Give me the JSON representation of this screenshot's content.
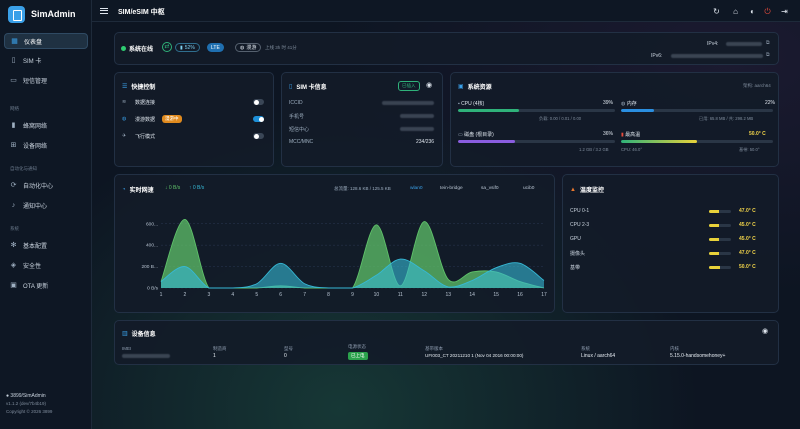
{
  "app": {
    "name": "SimAdmin",
    "page_title": "SIM/eSIM 中枢"
  },
  "sidebar": {
    "items": [
      {
        "label": "仪表盘",
        "icon": "dashboard-icon",
        "active": true
      },
      {
        "label": "SIM 卡",
        "icon": "sim-icon"
      },
      {
        "label": "短信管理",
        "icon": "message-icon"
      }
    ],
    "section_network": "网络",
    "network_items": [
      {
        "label": "蜂窝网络",
        "icon": "signal-bars-icon"
      },
      {
        "label": "设备网络",
        "icon": "network-icon"
      }
    ],
    "section_automation": "自动化与通知",
    "automation_items": [
      {
        "label": "自动化中心",
        "icon": "automation-icon"
      },
      {
        "label": "通知中心",
        "icon": "bell-icon"
      }
    ],
    "section_system": "系统",
    "system_items": [
      {
        "label": "基本配置",
        "icon": "gear-icon"
      },
      {
        "label": "安全性",
        "icon": "shield-icon"
      },
      {
        "label": "OTA 更新",
        "icon": "update-icon"
      }
    ],
    "footer": {
      "repo": "3899/SimAdmin",
      "version": "v1.1.2 (dev/7b4b19)",
      "copyright": "Copyright © 2026 3899"
    }
  },
  "status": {
    "online_label": "系统在线",
    "signal": "52%",
    "network": "LTE",
    "roaming": "漫游",
    "uptime": "上线 3h 时 41分",
    "ipv4_label": "IPv4:",
    "ipv6_label": "IPv6:"
  },
  "quick_controls": {
    "title": "快捷控制",
    "items": [
      {
        "label": "数据连接",
        "icon": "wifi-icon",
        "on": false
      },
      {
        "label": "漫游数据",
        "icon": "globe-icon",
        "badge": "漫游中",
        "on": true
      },
      {
        "label": "飞行模式",
        "icon": "airplane-icon",
        "on": false
      }
    ]
  },
  "sim_info": {
    "title": "SIM 卡信息",
    "status_badge": "已插入",
    "fields": [
      {
        "label": "ICCID",
        "value": ""
      },
      {
        "label": "手机号",
        "value": ""
      },
      {
        "label": "短信中心",
        "value": ""
      },
      {
        "label": "MCC/MNC",
        "value": "234/236"
      }
    ]
  },
  "resources": {
    "title": "系统资源",
    "arch": "架构: aarch64",
    "cpu": {
      "label": "CPU (4核)",
      "percent": "39%",
      "fill": 0.39,
      "sub": "负载: 0.00 / 0.01 / 0.00",
      "color": "#2fb27a"
    },
    "memory": {
      "label": "内存",
      "percent": "22%",
      "fill": 0.22,
      "sub": "已用: 65.8 MB / 共: 298.2 MB",
      "color": "#2a8ee0"
    },
    "storage": {
      "label": "磁盘 (根目录)",
      "percent": "36%",
      "fill": 0.36,
      "sub": "1.2 GB / 3.2 GB",
      "color": "#8a5de0"
    },
    "temp": {
      "label": "最高温",
      "value": "50.0° C",
      "sub_left": "CPU: 46.0°",
      "sub_right": "基带: 50.0°",
      "fill": 0.5
    }
  },
  "traffic": {
    "title": "实时网速",
    "down": "0 B/s",
    "up": "0 B/s",
    "total": "总流量: 128.6 KB / 125.5 KB",
    "tabs": [
      "wlan0",
      "tein-bridge",
      "sa_vsif0",
      "ucib0"
    ],
    "active_tab": 0
  },
  "temperature": {
    "title": "温度监控",
    "rows": [
      {
        "label": "CPU 0-1",
        "value": "47.0° C",
        "fill": 0.47
      },
      {
        "label": "CPU 2-3",
        "value": "45.0° C",
        "fill": 0.45
      },
      {
        "label": "GPU",
        "value": "45.0° C",
        "fill": 0.45
      },
      {
        "label": "摄像头",
        "value": "47.0° C",
        "fill": 0.47
      },
      {
        "label": "基带",
        "value": "50.0° C",
        "fill": 0.5
      }
    ]
  },
  "device": {
    "title": "设备信息",
    "fields": [
      {
        "label": "IMEI",
        "value": ""
      },
      {
        "label": "制造商",
        "value": "1"
      },
      {
        "label": "型号",
        "value": "0"
      },
      {
        "label": "电源状态",
        "value": "已上电"
      },
      {
        "label": "基带版本",
        "value": "UFI003_CT 20211210 1 (Nov 04 2016 00:00:00)"
      },
      {
        "label": "系统",
        "value": "Linux / aarch64"
      },
      {
        "label": "内核",
        "value": "5.15.0-handsomehoney+"
      }
    ]
  },
  "chart_data": {
    "type": "area",
    "x": [
      1,
      2,
      3,
      4,
      5,
      6,
      7,
      8,
      9,
      10,
      11,
      12,
      13,
      14,
      15,
      16,
      17
    ],
    "ytick_labels": [
      "600...",
      "400...",
      "200 B...",
      "0 B/s"
    ],
    "ylim": [
      0,
      700
    ],
    "series": [
      {
        "name": "",
        "color": "#5fc26a",
        "values": [
          60,
          640,
          0,
          0,
          0,
          20,
          0,
          0,
          0,
          590,
          20,
          620,
          80,
          150,
          150,
          60,
          0
        ]
      },
      {
        "name": "",
        "color": "#36b9d6",
        "values": [
          60,
          200,
          0,
          0,
          40,
          230,
          40,
          0,
          0,
          120,
          270,
          160,
          10,
          70,
          190,
          230,
          70
        ]
      }
    ]
  },
  "colors": {
    "accent": "#2a8ee0",
    "online": "#2ecc71",
    "danger": "#e74c3c",
    "temp": "#e8d23a"
  }
}
